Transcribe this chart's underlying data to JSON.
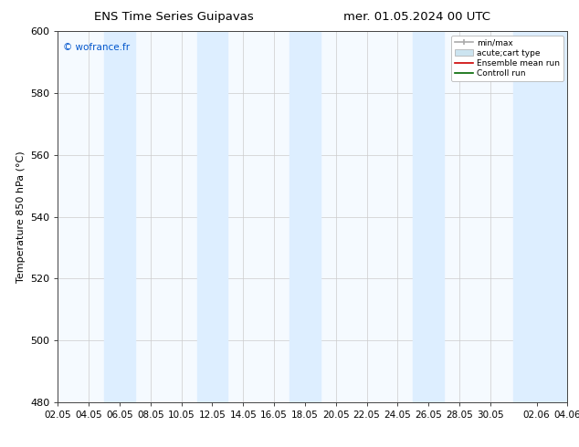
{
  "title_left": "ENS Time Series Guipavas",
  "title_right": "mer. 01.05.2024 00 UTC",
  "ylabel": "Temperature 850 hPa (°C)",
  "ylim": [
    480,
    600
  ],
  "yticks": [
    480,
    500,
    520,
    540,
    560,
    580,
    600
  ],
  "xtick_labels": [
    "02.05",
    "04.05",
    "06.05",
    "08.05",
    "10.05",
    "12.05",
    "14.05",
    "16.05",
    "18.05",
    "20.05",
    "22.05",
    "24.05",
    "26.05",
    "28.05",
    "30.05",
    "02.06",
    "04.06"
  ],
  "xtick_positions": [
    0,
    2,
    4,
    6,
    8,
    10,
    12,
    14,
    16,
    18,
    20,
    22,
    24,
    26,
    28,
    31,
    33
  ],
  "xlim_start": 0,
  "xlim_end": 33,
  "shaded_bands": [
    {
      "xmin": 3.0,
      "xmax": 5.0
    },
    {
      "xmin": 9.0,
      "xmax": 11.0
    },
    {
      "xmin": 15.0,
      "xmax": 17.0
    },
    {
      "xmin": 23.0,
      "xmax": 25.0
    },
    {
      "xmin": 29.5,
      "xmax": 33.5
    }
  ],
  "shaded_color": "#ddeeff",
  "watermark": "© wofrance.fr",
  "watermark_color": "#0055cc",
  "legend_labels": [
    "min/max",
    "acute;cart type",
    "Ensemble mean run",
    "Controll run"
  ],
  "legend_colors": [
    "#aaaaaa",
    "#cce4f0",
    "#cc0000",
    "#006600"
  ],
  "bg_color": "#ffffff",
  "plot_bg_color": "#f5faff",
  "spine_color": "#444444",
  "grid_color": "#cccccc",
  "font_size": 8.0,
  "title_font_size": 9.5
}
